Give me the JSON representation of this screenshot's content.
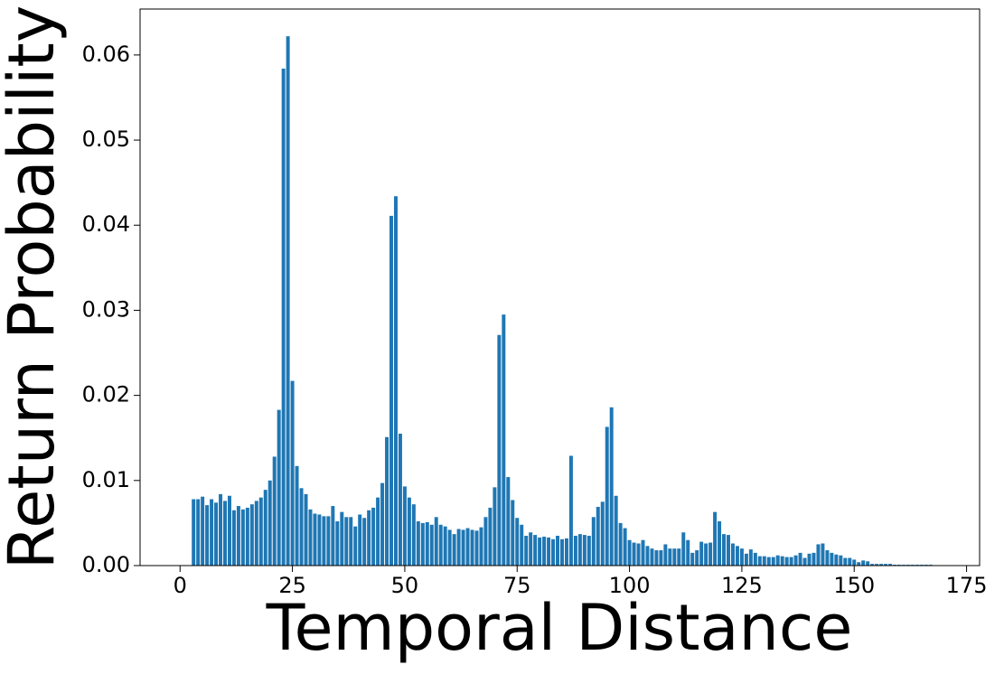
{
  "chart_data": {
    "type": "bar",
    "xlabel": "Temporal Distance",
    "ylabel": "Return Probability",
    "color": "#1f77b4",
    "bar_width": 0.8,
    "xlim": [
      -8.9,
      177.9
    ],
    "ylim": [
      0,
      0.0654
    ],
    "xticks": [
      0,
      25,
      50,
      75,
      100,
      125,
      150,
      175
    ],
    "yticks": [
      {
        "value": 0,
        "label": "0.00"
      },
      0.01,
      0.02,
      0.03,
      0.04,
      0.05,
      0.06
    ],
    "x": [
      3,
      4,
      5,
      6,
      7,
      8,
      9,
      10,
      11,
      12,
      13,
      14,
      15,
      16,
      17,
      18,
      19,
      20,
      21,
      22,
      23,
      24,
      25,
      26,
      27,
      28,
      29,
      30,
      31,
      32,
      33,
      34,
      35,
      36,
      37,
      38,
      39,
      40,
      41,
      42,
      43,
      44,
      45,
      46,
      47,
      48,
      49,
      50,
      51,
      52,
      53,
      54,
      55,
      56,
      57,
      58,
      59,
      60,
      61,
      62,
      63,
      64,
      65,
      66,
      67,
      68,
      69,
      70,
      71,
      72,
      73,
      74,
      75,
      76,
      77,
      78,
      79,
      80,
      81,
      82,
      83,
      84,
      85,
      86,
      87,
      88,
      89,
      90,
      91,
      92,
      93,
      94,
      95,
      96,
      97,
      98,
      99,
      100,
      101,
      102,
      103,
      104,
      105,
      106,
      107,
      108,
      109,
      110,
      111,
      112,
      113,
      114,
      115,
      116,
      117,
      118,
      119,
      120,
      121,
      122,
      123,
      124,
      125,
      126,
      127,
      128,
      129,
      130,
      131,
      132,
      133,
      134,
      135,
      136,
      137,
      138,
      139,
      140,
      141,
      142,
      143,
      144,
      145,
      146,
      147,
      148,
      149,
      150,
      151,
      152,
      153,
      154,
      155,
      156,
      157,
      158,
      159,
      160,
      161,
      162,
      163,
      164,
      165,
      166,
      167
    ],
    "values": [
      0.0078,
      0.0078,
      0.0081,
      0.0071,
      0.0078,
      0.0074,
      0.0084,
      0.0076,
      0.0082,
      0.0065,
      0.007,
      0.0066,
      0.0068,
      0.0072,
      0.0076,
      0.008,
      0.0089,
      0.01,
      0.0128,
      0.0183,
      0.0584,
      0.0622,
      0.0217,
      0.0117,
      0.0091,
      0.0084,
      0.0066,
      0.0061,
      0.006,
      0.0058,
      0.0058,
      0.007,
      0.0052,
      0.0063,
      0.0057,
      0.0057,
      0.0046,
      0.006,
      0.0056,
      0.0065,
      0.0068,
      0.008,
      0.0097,
      0.0151,
      0.0411,
      0.0434,
      0.0155,
      0.0093,
      0.008,
      0.0072,
      0.0052,
      0.005,
      0.0051,
      0.0048,
      0.0057,
      0.0048,
      0.0046,
      0.0042,
      0.0037,
      0.0043,
      0.0042,
      0.0044,
      0.0042,
      0.0041,
      0.0045,
      0.0057,
      0.0068,
      0.0092,
      0.0271,
      0.0295,
      0.0104,
      0.0077,
      0.0056,
      0.0048,
      0.0035,
      0.0039,
      0.0036,
      0.0033,
      0.0034,
      0.0033,
      0.0031,
      0.0035,
      0.0031,
      0.0032,
      0.0129,
      0.0035,
      0.0037,
      0.0036,
      0.0035,
      0.0057,
      0.0069,
      0.0075,
      0.0163,
      0.0186,
      0.0082,
      0.005,
      0.0044,
      0.003,
      0.0027,
      0.0026,
      0.003,
      0.0023,
      0.002,
      0.0018,
      0.0018,
      0.0025,
      0.002,
      0.002,
      0.002,
      0.0039,
      0.003,
      0.0015,
      0.0018,
      0.0028,
      0.0026,
      0.0027,
      0.0063,
      0.0052,
      0.0037,
      0.0036,
      0.0026,
      0.0023,
      0.002,
      0.0014,
      0.0019,
      0.0015,
      0.0011,
      0.0011,
      0.001,
      0.001,
      0.0012,
      0.0011,
      0.001,
      0.001,
      0.0012,
      0.0015,
      0.0009,
      0.0014,
      0.0015,
      0.0025,
      0.0026,
      0.0018,
      0.0015,
      0.0013,
      0.0012,
      0.0009,
      0.0009,
      0.0007,
      0.0004,
      0.0006,
      0.0005,
      0.0002,
      0.0002,
      0.0002,
      0.0002,
      0.0002,
      0.0001,
      0.0001,
      0.0001,
      0.0001,
      0.0001,
      0.0001,
      0.0001,
      0.0001,
      0.0001
    ]
  }
}
